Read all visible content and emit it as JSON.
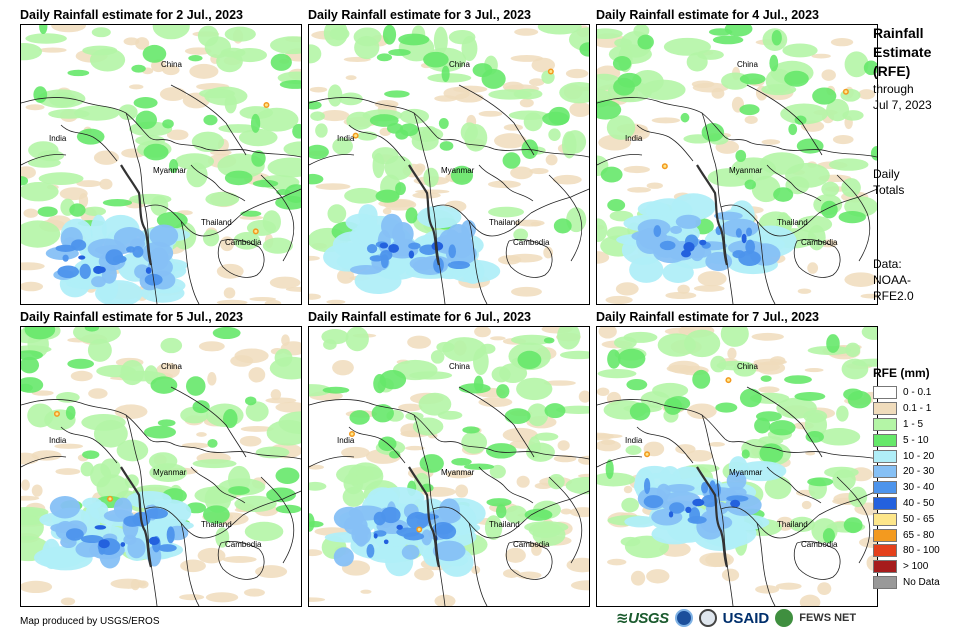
{
  "panels": [
    {
      "title": "Daily Rainfall estimate for 2 Jul., 2023",
      "labels": {
        "china": "China",
        "india": "India",
        "myanmar": "Myanmar",
        "thailand": "Thailand",
        "cambodia": "Cambodia"
      }
    },
    {
      "title": "Daily Rainfall estimate for 3 Jul., 2023",
      "labels": {
        "china": "China",
        "india": "India",
        "myanmar": "Myanmar",
        "thailand": "Thailand",
        "cambodia": "Cambodia"
      }
    },
    {
      "title": "Daily Rainfall estimate for 4 Jul., 2023",
      "labels": {
        "china": "China",
        "india": "India",
        "myanmar": "Myanmar",
        "thailand": "Thailand",
        "cambodia": "Cambodia"
      }
    },
    {
      "title": "Daily Rainfall estimate for 5 Jul., 2023",
      "labels": {
        "china": "China",
        "india": "India",
        "myanmar": "Myanmar",
        "thailand": "Thailand",
        "cambodia": "Cambodia"
      }
    },
    {
      "title": "Daily Rainfall estimate for 6 Jul., 2023",
      "labels": {
        "china": "China",
        "india": "India",
        "myanmar": "Myanmar",
        "thailand": "Thailand",
        "cambodia": "Cambodia"
      }
    },
    {
      "title": "Daily Rainfall estimate for 7 Jul., 2023",
      "labels": {
        "china": "China",
        "india": "India",
        "myanmar": "Myanmar",
        "thailand": "Thailand",
        "cambodia": "Cambodia"
      }
    }
  ],
  "sidebar": {
    "title_line1": "Rainfall",
    "title_line2": "Estimate",
    "title_line3": "(RFE)",
    "through": "through",
    "date": "Jul 7, 2023",
    "totals_line1": "Daily",
    "totals_line2": "Totals",
    "data_line1": "Data:",
    "data_line2": "NOAA-",
    "data_line3": "RFE2.0"
  },
  "legend": {
    "title": "RFE (mm)",
    "items": [
      {
        "label": "0 - 0.1",
        "color": "#ffffff"
      },
      {
        "label": "0.1 - 1",
        "color": "#f0dcbc"
      },
      {
        "label": "1 - 5",
        "color": "#b4f5a6"
      },
      {
        "label": "5 - 10",
        "color": "#66e86a"
      },
      {
        "label": "10 - 20",
        "color": "#b0eef8"
      },
      {
        "label": "20 - 30",
        "color": "#86c0f5"
      },
      {
        "label": "30 - 40",
        "color": "#4d94ec"
      },
      {
        "label": "40 - 50",
        "color": "#2361de"
      },
      {
        "label": "50 - 65",
        "color": "#fde68a"
      },
      {
        "label": "65 - 80",
        "color": "#f39a1f"
      },
      {
        "label": "80 - 100",
        "color": "#e4401b"
      },
      {
        "label": "> 100",
        "color": "#a61c1c"
      },
      {
        "label": "No Data",
        "color": "#999999"
      }
    ]
  },
  "footer": {
    "credit": "Map produced by USGS/EROS",
    "logo_usgs": "≋USGS",
    "logo_usaid": "USAID",
    "logo_fews": "FEWS NET"
  }
}
